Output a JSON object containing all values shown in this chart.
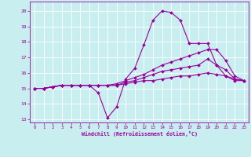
{
  "background_color": "#c8eef0",
  "grid_color": "#ffffff",
  "line_color": "#990099",
  "marker": "D",
  "marker_size": 2,
  "xlabel": "Windchill (Refroidissement éolien,°C)",
  "xlim": [
    -0.5,
    23.5
  ],
  "ylim": [
    12.8,
    20.6
  ],
  "yticks": [
    13,
    14,
    15,
    16,
    17,
    18,
    19,
    20
  ],
  "xticks": [
    0,
    1,
    2,
    3,
    4,
    5,
    6,
    7,
    8,
    9,
    10,
    11,
    12,
    13,
    14,
    15,
    16,
    17,
    18,
    19,
    20,
    21,
    22,
    23
  ],
  "series": [
    [
      15.0,
      15.0,
      15.1,
      15.2,
      15.2,
      15.2,
      15.2,
      14.7,
      13.1,
      13.8,
      15.6,
      16.3,
      17.8,
      19.4,
      20.0,
      19.9,
      19.4,
      17.9,
      17.9,
      17.9,
      16.5,
      15.8,
      15.5,
      15.5
    ],
    [
      15.0,
      15.0,
      15.1,
      15.2,
      15.2,
      15.2,
      15.2,
      15.2,
      15.2,
      15.3,
      15.5,
      15.7,
      15.9,
      16.2,
      16.5,
      16.7,
      16.9,
      17.1,
      17.3,
      17.5,
      17.5,
      16.8,
      15.8,
      15.5
    ],
    [
      15.0,
      15.0,
      15.1,
      15.2,
      15.2,
      15.2,
      15.2,
      15.2,
      15.2,
      15.2,
      15.4,
      15.5,
      15.7,
      15.9,
      16.1,
      16.2,
      16.3,
      16.4,
      16.5,
      16.9,
      16.5,
      16.2,
      15.6,
      15.5
    ],
    [
      15.0,
      15.0,
      15.1,
      15.2,
      15.2,
      15.2,
      15.2,
      15.2,
      15.2,
      15.2,
      15.3,
      15.4,
      15.5,
      15.5,
      15.6,
      15.7,
      15.8,
      15.8,
      15.9,
      16.0,
      15.9,
      15.8,
      15.6,
      15.5
    ]
  ]
}
